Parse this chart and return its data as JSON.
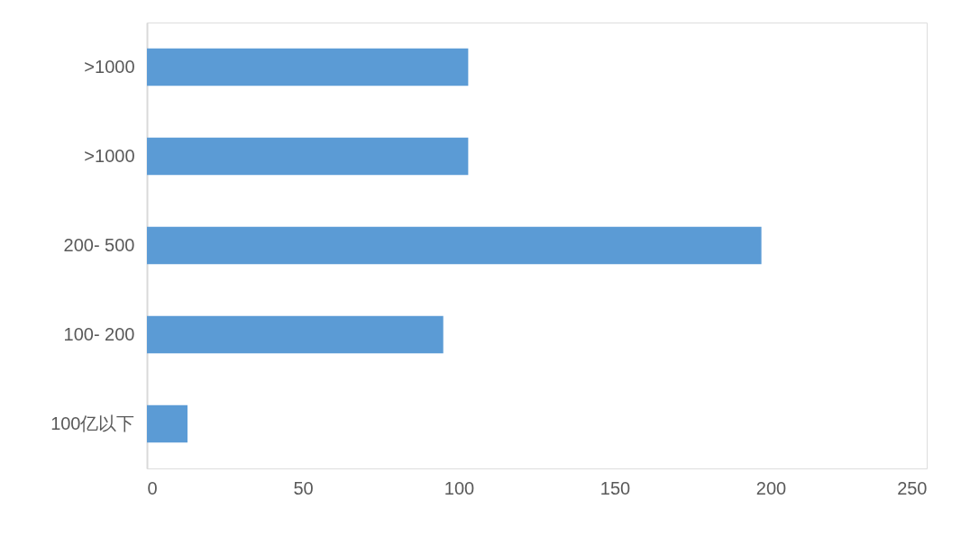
{
  "chart_data": {
    "type": "bar",
    "orientation": "horizontal",
    "categories": [
      ">1000",
      ">1000",
      "200- 500",
      "100- 200",
      "100亿以下"
    ],
    "values": [
      103,
      103,
      197,
      95,
      13
    ],
    "color": "#5b9bd5",
    "xlim": [
      0,
      250
    ],
    "xticks": [
      0,
      50,
      100,
      150,
      200,
      250
    ],
    "grid": false
  }
}
